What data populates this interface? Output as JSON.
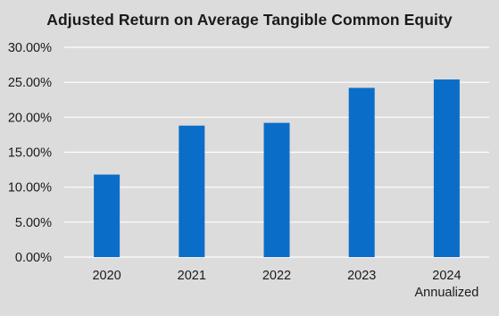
{
  "chart_data": {
    "type": "bar",
    "title": "Adjusted Return on Average Tangible Common Equity",
    "categories": [
      [
        "2020"
      ],
      [
        "2021"
      ],
      [
        "2022"
      ],
      [
        "2023"
      ],
      [
        "2024",
        "Annualized"
      ]
    ],
    "values": [
      11.8,
      18.8,
      19.2,
      24.2,
      25.4
    ],
    "ylim": [
      0,
      30
    ],
    "yticks": [
      "0.00%",
      "5.00%",
      "10.00%",
      "15.00%",
      "20.00%",
      "25.00%",
      "30.00%"
    ],
    "xlabel": "",
    "ylabel": "",
    "grid": true,
    "bar_color": "#0a6ec8",
    "grid_color": "#ffffff"
  }
}
